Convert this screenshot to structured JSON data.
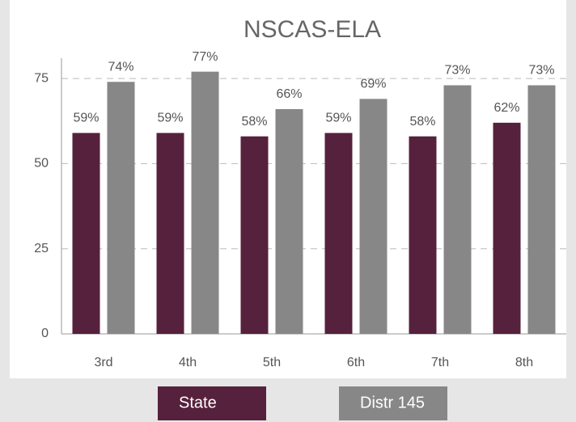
{
  "chart_data": {
    "type": "bar",
    "title": "NSCAS-ELA",
    "categories": [
      "3rd",
      "4th",
      "5th",
      "6th",
      "7th",
      "8th"
    ],
    "series": [
      {
        "name": "State",
        "color": "#56213d",
        "values": [
          59,
          59,
          58,
          59,
          58,
          62
        ],
        "value_labels": [
          "59%",
          "59%",
          "58%",
          "59%",
          "58%",
          "62%"
        ]
      },
      {
        "name": "Distr 145",
        "color": "#878787",
        "values": [
          74,
          77,
          66,
          69,
          73,
          73
        ],
        "value_labels": [
          "74%",
          "77%",
          "66%",
          "69%",
          "73%",
          "73%"
        ]
      }
    ],
    "ylim": [
      0,
      80
    ],
    "yticks": [
      0,
      25,
      50,
      75
    ],
    "grid": true,
    "legend": "bottom"
  }
}
